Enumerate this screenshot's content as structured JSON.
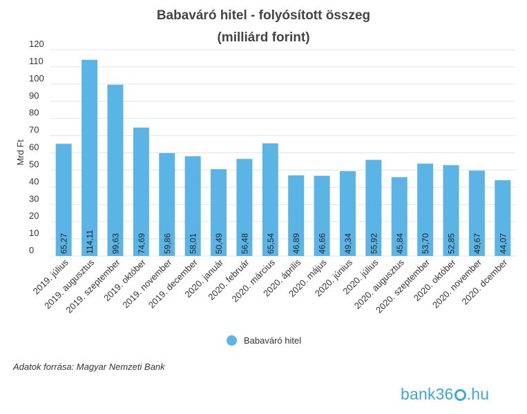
{
  "title_line1": "Babaváró hitel - folyósított összeg",
  "title_line2": "(milliárd forint)",
  "source": "Adatok forrása: Magyar Nemzeti Bank",
  "logo": {
    "prefix": "bank36",
    "suffix": ".hu"
  },
  "chart_data": {
    "type": "bar",
    "categories": [
      "2019. július",
      "2019. augusztus",
      "2019. szeptember",
      "2019. október",
      "2019. november",
      "2019. december",
      "2020. január",
      "2020. február",
      "2020. március",
      "2020. április",
      "2020. május",
      "2020. június",
      "2020. július",
      "2020. augusztus",
      "2020. szeptember",
      "2020. október",
      "2020. november",
      "2020. dcember"
    ],
    "series": [
      {
        "name": "Babaváró hitel",
        "values": [
          65.27,
          114.11,
          99.63,
          74.69,
          59.86,
          58.01,
          50.49,
          56.48,
          65.54,
          46.89,
          46.66,
          49.34,
          55.92,
          45.84,
          53.7,
          52.85,
          49.67,
          44.07
        ],
        "labels": [
          "65,27",
          "114,11",
          "99,63",
          "74,69",
          "59,86",
          "58,01",
          "50,49",
          "56,48",
          "65,54",
          "46,89",
          "46,66",
          "49,34",
          "55,92",
          "45,84",
          "53,70",
          "52,85",
          "49,67",
          "44,07"
        ]
      }
    ],
    "ylabel": "Mrd Ft",
    "ylim": [
      0,
      120
    ],
    "yticks": [
      0,
      10,
      20,
      30,
      40,
      50,
      60,
      70,
      80,
      90,
      100,
      110,
      120
    ],
    "grid": true,
    "legend_position": "bottom",
    "colors": {
      "bar": "#5ab4e5",
      "grid": "#e3e3e3"
    }
  }
}
